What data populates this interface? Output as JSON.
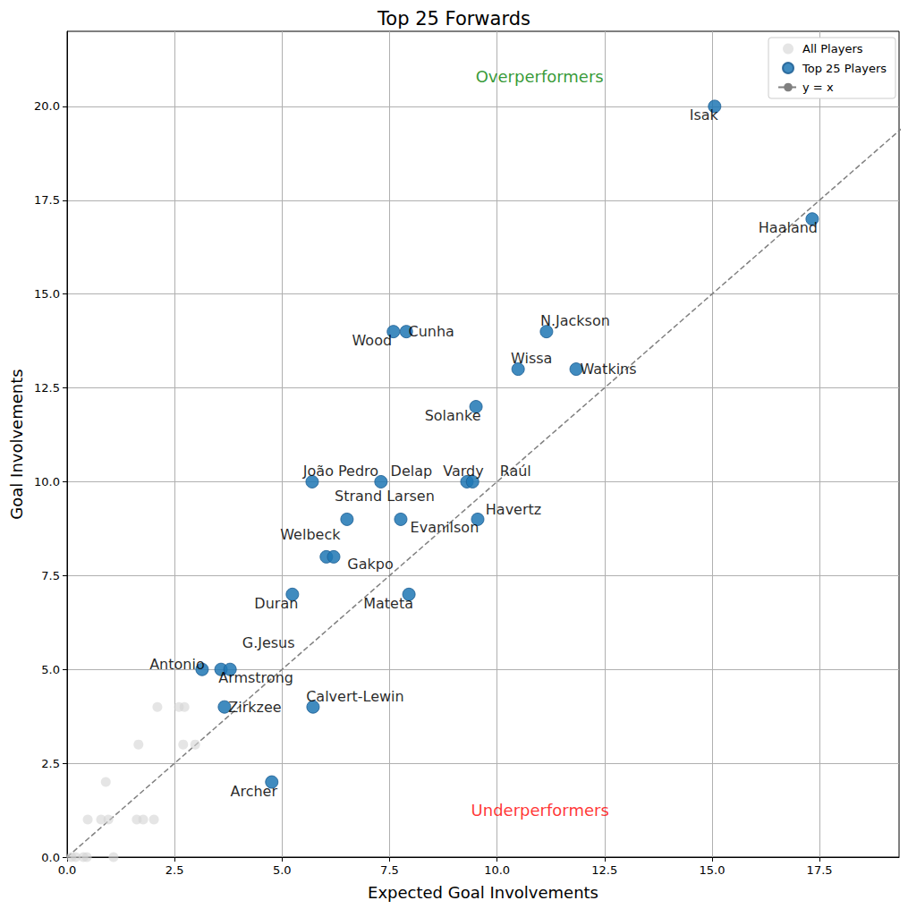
{
  "chart_data": {
    "type": "scatter",
    "title": "Top 25 Forwards",
    "x_label": "Expected Goal Involvements",
    "y_label": "Goal Involvements",
    "xlim": [
      0,
      19.35
    ],
    "ylim": [
      0,
      22
    ],
    "xticks": [
      {
        "value": 0,
        "label": "0.0"
      },
      2.5,
      {
        "value": 5,
        "label": "5.0"
      },
      7.5,
      {
        "value": 10,
        "label": "10.0"
      },
      12.5,
      {
        "value": 15,
        "label": "15.0"
      },
      17.5
    ],
    "yticks": [
      {
        "value": 0,
        "label": "0.0"
      },
      2.5,
      {
        "value": 5,
        "label": "5.0"
      },
      7.5,
      {
        "value": 10,
        "label": "10.0"
      },
      12.5,
      {
        "value": 15,
        "label": "15.0"
      },
      17.5,
      {
        "value": 20,
        "label": "20.0"
      }
    ],
    "grid": true,
    "legend": "upper right",
    "series": [
      {
        "name": "All Players",
        "type": "scatter",
        "marker": "circle",
        "color": "#d3d3d3",
        "x": [
          0.1,
          0.2,
          0.38,
          0.46,
          1.08,
          0.48,
          0.79,
          0.96,
          0.9,
          1.62,
          1.77,
          2.02,
          1.66,
          2.7,
          2.98,
          2.1,
          2.6,
          2.73
        ],
        "y": [
          0,
          0,
          0,
          0,
          0,
          1,
          1,
          1,
          2,
          1,
          1,
          1,
          3,
          3,
          3,
          4,
          4,
          4
        ]
      },
      {
        "name": "Top 25 Players",
        "type": "scatter",
        "marker": "circle",
        "color": "#1f77b4",
        "labels": [
          "Isak",
          "Haaland",
          "N.Jackson",
          "Cunha",
          "Wood",
          "Wissa",
          "Watkins",
          "Solanke",
          "João Pedro",
          "Delap",
          "Vardy",
          "Raúl",
          "Strand Larsen",
          "Evanilson",
          "Havertz",
          "Welbeck",
          "Gakpo",
          "Duran",
          "Mateta",
          "Antonio",
          "Armstrong",
          "G.Jesus",
          "Zirkzee",
          "Calvert-Lewin",
          "Archer"
        ],
        "x": [
          15.06,
          17.33,
          11.15,
          7.89,
          7.59,
          10.49,
          11.84,
          9.51,
          5.7,
          7.3,
          9.3,
          9.43,
          6.51,
          7.76,
          9.55,
          6.03,
          6.2,
          5.24,
          7.95,
          3.14,
          3.58,
          3.79,
          3.66,
          5.72,
          4.76
        ],
        "y": [
          20,
          17,
          14,
          14,
          14,
          13,
          13,
          12,
          10,
          10,
          10,
          10,
          9,
          9,
          9,
          8,
          8,
          7,
          7,
          5,
          5,
          5,
          4,
          4,
          2
        ]
      },
      {
        "name": "y = x",
        "type": "line",
        "line_style": "dashed",
        "color": "#808080",
        "x": [
          0,
          22
        ],
        "y": [
          0,
          22
        ]
      }
    ],
    "annotations": [
      {
        "text": "Overperformers",
        "x": 10.99,
        "y": 20.8,
        "color": "green"
      },
      {
        "text": "Underperformers",
        "x": 11.0,
        "y": 1.24,
        "color": "red"
      }
    ]
  }
}
